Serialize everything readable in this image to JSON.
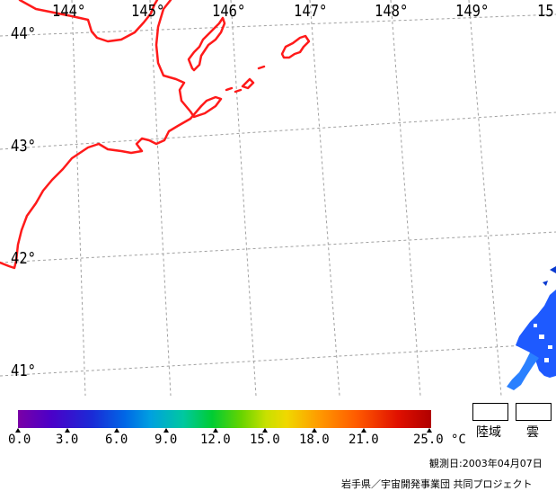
{
  "longitude_labels": [
    "144°",
    "145°",
    "146°",
    "147°",
    "148°",
    "149°",
    "15"
  ],
  "latitude_labels": [
    "44°",
    "43°",
    "42°",
    "41°"
  ],
  "colors": {
    "coastline": "#ff1a1a",
    "grid": "#999999",
    "cloud_patch": "#1e5aff"
  },
  "legend": {
    "scale_values": [
      "0.0",
      "3.0",
      "6.0",
      "9.0",
      "12.0",
      "15.0",
      "18.0",
      "21.0",
      "25.0"
    ],
    "unit": "°C",
    "land_label": "陸域",
    "cloud_label": "雲"
  },
  "observation": "観測日:2003年04月07日",
  "credit": "岩手県／宇宙開発事業団 共同プロジェクト"
}
